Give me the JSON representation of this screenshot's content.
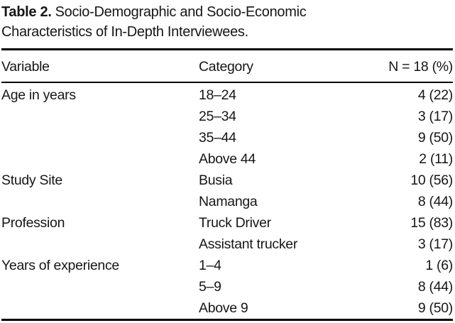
{
  "caption": {
    "label": "Table 2.",
    "text": "Socio-Demographic and Socio-Economic Characteristics of In-Depth Interviewees."
  },
  "columns": [
    "Variable",
    "Category",
    "N = 18 (%)"
  ],
  "rows": [
    {
      "variable": "Age in years",
      "category": "18–24",
      "value": "4 (22)"
    },
    {
      "variable": "",
      "category": "25–34",
      "value": "3 (17)"
    },
    {
      "variable": "",
      "category": "35–44",
      "value": "9 (50)"
    },
    {
      "variable": "",
      "category": "Above 44",
      "value": "2 (11)"
    },
    {
      "variable": "Study Site",
      "category": "Busia",
      "value": "10 (56)"
    },
    {
      "variable": "",
      "category": "Namanga",
      "value": "8 (44)"
    },
    {
      "variable": "Profession",
      "category": "Truck Driver",
      "value": "15 (83)"
    },
    {
      "variable": "",
      "category": "Assistant trucker",
      "value": "3 (17)"
    },
    {
      "variable": "Years of experience",
      "category": "1–4",
      "value": "1 (6)"
    },
    {
      "variable": "",
      "category": "5–9",
      "value": "8 (44)"
    },
    {
      "variable": "",
      "category": "Above 9",
      "value": "9 (50)"
    }
  ],
  "colors": {
    "background": "#ffffff",
    "text": "#161616",
    "rule": "#000000"
  }
}
